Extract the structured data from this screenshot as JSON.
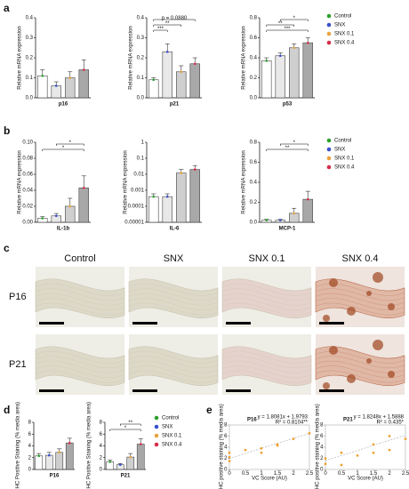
{
  "panels": [
    "a",
    "b",
    "c",
    "d",
    "e"
  ],
  "histology": {
    "columns": [
      "Control",
      "SNX",
      "SNX 0.1",
      "SNX 0.4"
    ],
    "rows": [
      "P16",
      "P21"
    ]
  },
  "chart_data": [
    {
      "type": "bar",
      "ylabel": "Relative mRNA expression",
      "categories": [
        "p16",
        "p21",
        "p53"
      ],
      "series": [
        {
          "name": "Control",
          "color": "#2ca02c",
          "fill": "#ffffff",
          "values": [
            0.11,
            0.09,
            0.37
          ],
          "errors": [
            0.03,
            0.01,
            0.03
          ]
        },
        {
          "name": "SNX",
          "color": "#3a4fd0",
          "fill": "#e8e8e8",
          "values": [
            0.06,
            0.23,
            0.42
          ],
          "errors": [
            0.02,
            0.04,
            0.03
          ]
        },
        {
          "name": "SNX 0.1",
          "color": "#e8a33d",
          "fill": "#cfcfcf",
          "values": [
            0.1,
            0.13,
            0.5
          ],
          "errors": [
            0.03,
            0.03,
            0.04
          ]
        },
        {
          "name": "SNX 0.4",
          "color": "#d62d4a",
          "fill": "#a8a8a8",
          "values": [
            0.14,
            0.17,
            0.55
          ],
          "errors": [
            0.05,
            0.03,
            0.05
          ]
        }
      ],
      "axes": [
        {
          "ylim": [
            0,
            0.4
          ],
          "yticks": [
            {
              "value": 0,
              "label": "0.0"
            },
            0.1,
            0.2,
            0.3,
            0.4
          ],
          "brackets": []
        },
        {
          "ylim": [
            0,
            0.4
          ],
          "yticks": [
            {
              "value": 0,
              "label": "0.0"
            },
            0.1,
            0.2,
            0.3,
            0.4
          ],
          "brackets": [
            "***",
            "**",
            "p = 0.0880"
          ]
        },
        {
          "ylim": [
            0,
            0.8
          ],
          "yticks": [
            {
              "value": 0,
              "label": "0.0"
            },
            0.2,
            0.4,
            0.6,
            0.8
          ],
          "brackets": [
            "***",
            "**",
            "*"
          ]
        }
      ]
    },
    {
      "type": "bar",
      "ylabel": "Relative mRNA expression",
      "categories": [
        "IL-1b",
        "IL-6",
        "MCP-1"
      ],
      "series": [
        {
          "name": "Control",
          "color": "#2ca02c",
          "fill": "#ffffff",
          "values": [
            0.005,
            0.0004,
            0.02
          ],
          "errors": [
            0.002,
            0.0002,
            0.01
          ]
        },
        {
          "name": "SNX",
          "color": "#3a4fd0",
          "fill": "#e8e8e8",
          "values": [
            0.008,
            0.0004,
            0.02
          ],
          "errors": [
            0.003,
            0.0002,
            0.01
          ]
        },
        {
          "name": "SNX 0.1",
          "color": "#e8a33d",
          "fill": "#cfcfcf",
          "values": [
            0.02,
            0.012,
            0.09
          ],
          "errors": [
            0.01,
            0.008,
            0.05
          ]
        },
        {
          "name": "SNX 0.4",
          "color": "#d62d4a",
          "fill": "#a8a8a8",
          "values": [
            0.043,
            0.02,
            0.23
          ],
          "errors": [
            0.015,
            0.015,
            0.08
          ]
        }
      ],
      "axes": [
        {
          "ylim": [
            0,
            0.1
          ],
          "yticks": [
            {
              "value": 0,
              "label": "0.00"
            },
            0.02,
            0.04,
            0.06,
            0.08,
            {
              "value": 0.1,
              "label": "0.10"
            }
          ],
          "brackets": [
            "*",
            "*"
          ]
        },
        {
          "ylim": [
            1e-05,
            1
          ],
          "log": true,
          "yticks": [
            1e-05,
            0.0001,
            0.001,
            0.01,
            0.1,
            1
          ],
          "brackets": []
        },
        {
          "ylim": [
            0,
            0.8
          ],
          "yticks": [
            {
              "value": 0,
              "label": "0.0"
            },
            0.2,
            0.4,
            0.6,
            0.8
          ],
          "brackets": [
            "**",
            "*"
          ]
        }
      ]
    },
    {
      "type": "bar",
      "ylabel": "IHC Positive Staining (% media area)",
      "categories": [
        "P16",
        "P21"
      ],
      "series": [
        {
          "name": "Control",
          "color": "#2ca02c",
          "fill": "#ffffff",
          "values": [
            2.3,
            1.3
          ],
          "errors": [
            0.4,
            0.3
          ]
        },
        {
          "name": "SNX",
          "color": "#3a4fd0",
          "fill": "#e8e8e8",
          "values": [
            2.4,
            0.8
          ],
          "errors": [
            0.5,
            0.2
          ]
        },
        {
          "name": "SNX 0.1",
          "color": "#e8a33d",
          "fill": "#cfcfcf",
          "values": [
            2.9,
            2.1
          ],
          "errors": [
            0.6,
            0.6
          ]
        },
        {
          "name": "SNX 0.4",
          "color": "#d62d4a",
          "fill": "#a8a8a8",
          "values": [
            4.5,
            4.3
          ],
          "errors": [
            0.8,
            0.9
          ]
        }
      ],
      "axes": [
        {
          "ylim": [
            0,
            8
          ],
          "yticks": [
            0,
            2,
            4,
            6,
            8
          ],
          "brackets": []
        },
        {
          "ylim": [
            0,
            8
          ],
          "yticks": [
            0,
            2,
            4,
            6,
            8
          ],
          "brackets": [
            "*",
            "**"
          ]
        }
      ]
    },
    {
      "type": "scatter",
      "title": "P16",
      "xlabel": "VC Score (AU)",
      "ylabel": "IHC positive staining (% media area)",
      "equation": "y = 1.8081x + 1.9793",
      "r2": "R² = 0.8104**",
      "slope": 1.8081,
      "intercept": 1.9793,
      "color": "#f0a030",
      "x": [
        0,
        0,
        0,
        0.5,
        1,
        1,
        1.5,
        1.5,
        2,
        2.5
      ],
      "y": [
        2.2,
        3.0,
        1.5,
        3.5,
        3.8,
        3.0,
        4.3,
        4.5,
        5.5,
        6.5
      ],
      "xlim": [
        0,
        2.5
      ],
      "xticks": [
        0,
        0.5,
        1,
        1.5,
        2,
        2.5
      ],
      "ylim": [
        0,
        8
      ],
      "yticks": [
        0,
        2,
        4,
        6,
        8
      ]
    },
    {
      "type": "scatter",
      "title": "P21",
      "xlabel": "VC Score (AU)",
      "ylabel": "IHC positive staining (% media area)",
      "equation": "y = 1.8248x + 1.5888",
      "r2": "R² = 0.435*",
      "slope": 1.8248,
      "intercept": 1.5888,
      "color": "#f0a030",
      "x": [
        0,
        0,
        0.5,
        0.5,
        1,
        1.5,
        1.5,
        2,
        2,
        2.5
      ],
      "y": [
        1.0,
        2.0,
        0.8,
        3.0,
        2.5,
        3.0,
        4.5,
        6.0,
        3.5,
        5.5
      ],
      "xlim": [
        0,
        2.5
      ],
      "xticks": [
        0,
        0.5,
        1,
        1.5,
        2,
        2.5
      ],
      "ylim": [
        0,
        8
      ],
      "yticks": [
        0,
        2,
        4,
        6,
        8
      ]
    }
  ]
}
